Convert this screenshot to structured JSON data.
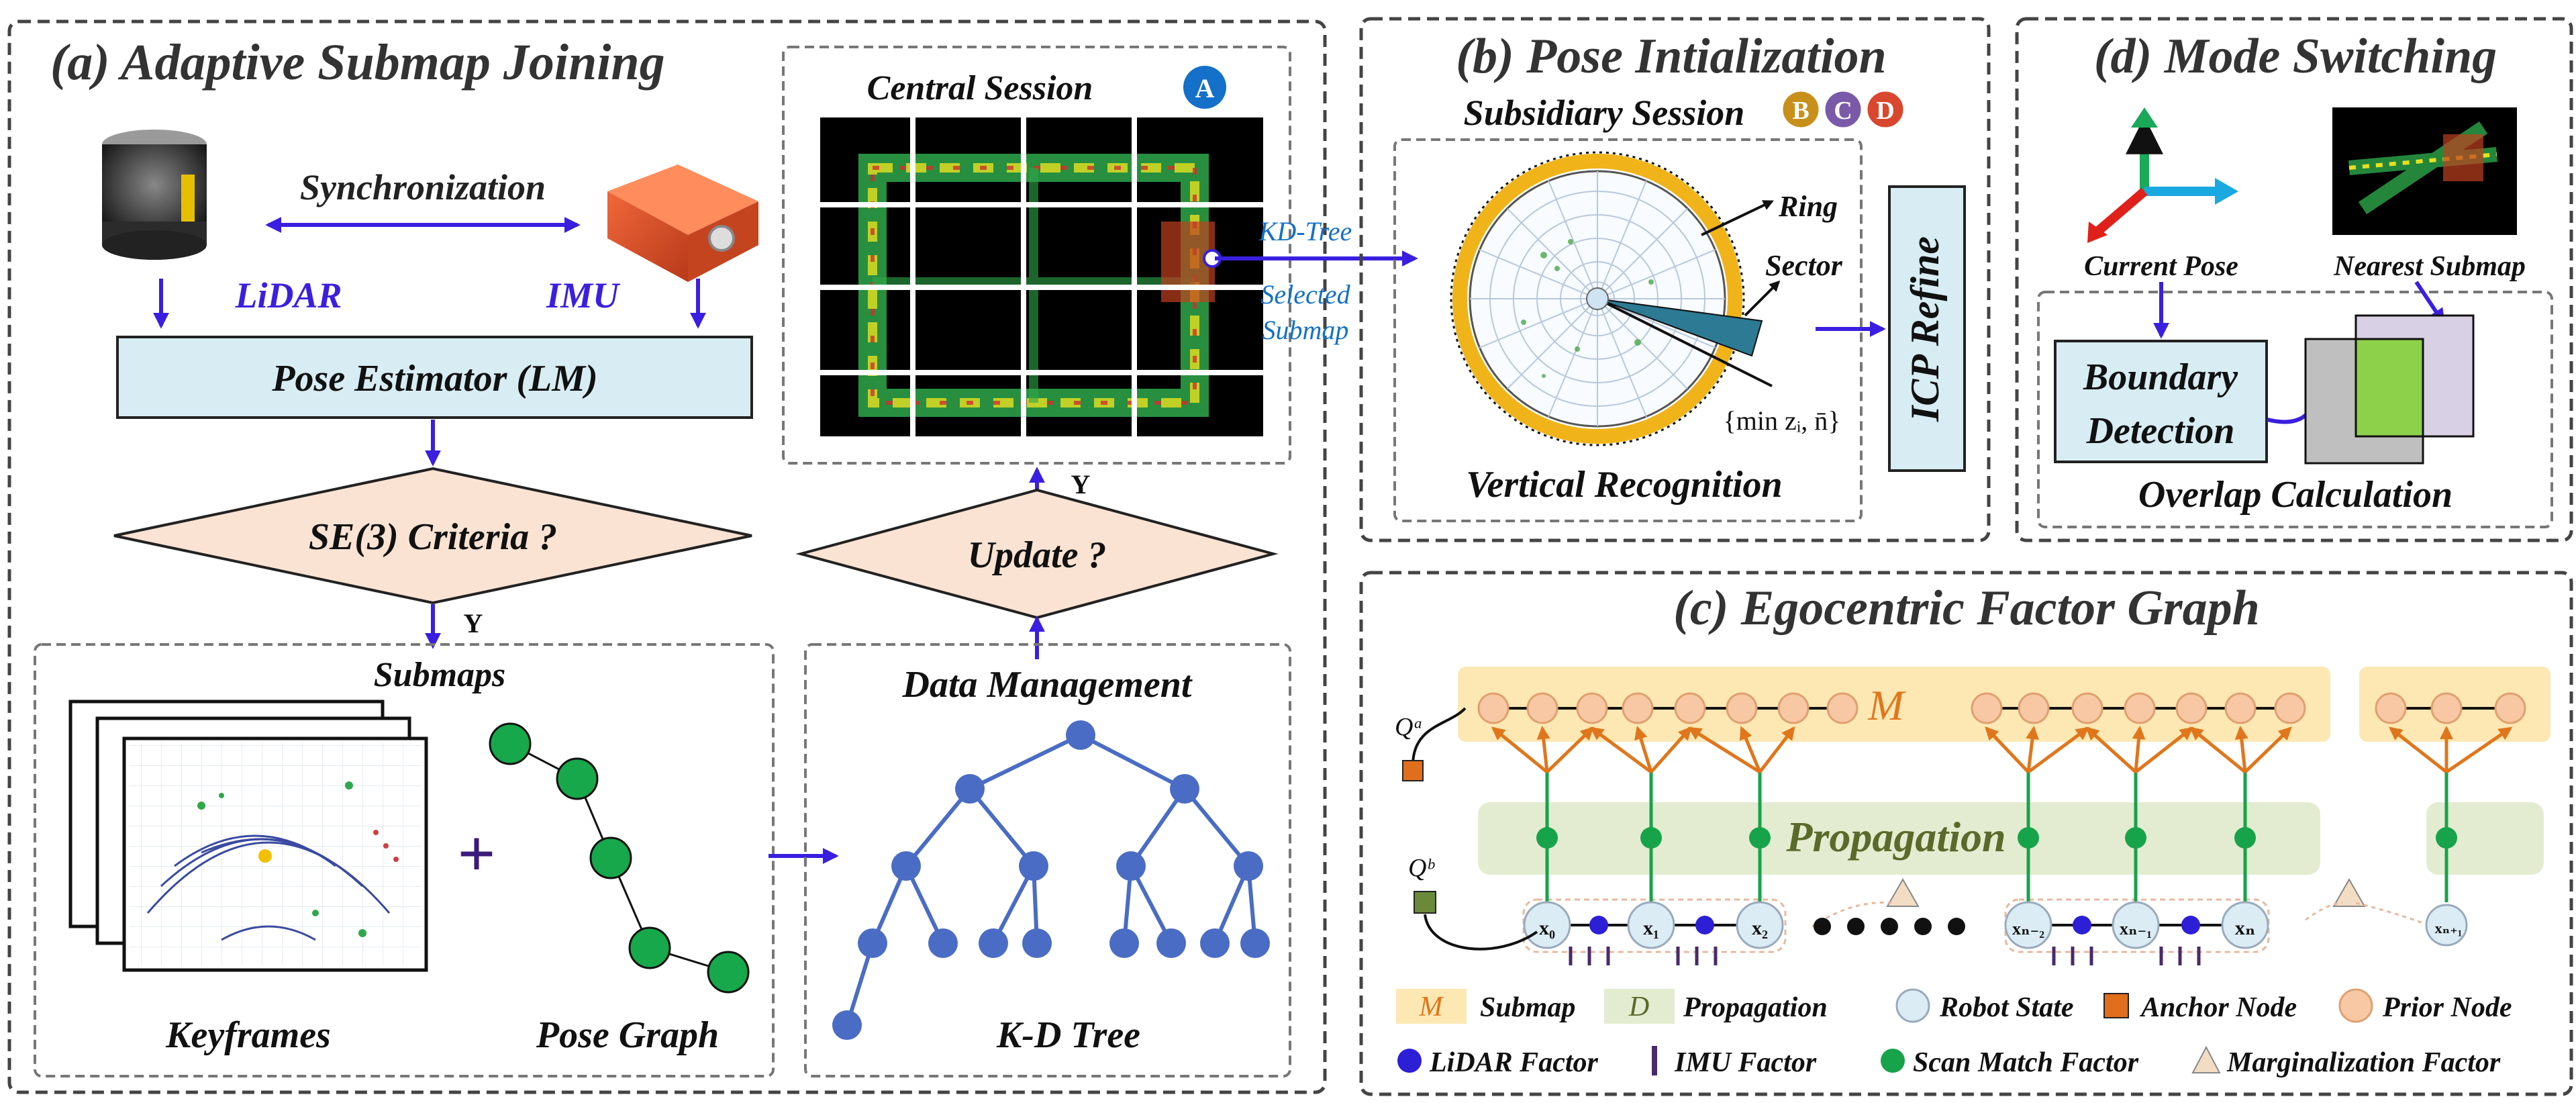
{
  "panel_a": {
    "title": "(a) Adaptive Submap Joining",
    "sync_label": "Synchronization",
    "lidar_label": "LiDAR",
    "imu_label": "IMU",
    "pose_estimator": "Pose Estimator (LM)",
    "se3_criteria": "SE(3) Criteria ?",
    "yes1": "Y",
    "submaps_title": "Submaps",
    "keyframes_label": "Keyframes",
    "plus": "+",
    "pose_graph_label": "Pose Graph",
    "central_session": "Central Session",
    "session_a": "A",
    "update": "Update ?",
    "yes2": "Y",
    "data_management": "Data Management",
    "kd_tree_label": "K-D Tree",
    "kd_tree_edge": "KD-Tree",
    "selected_submap_1": "Selected",
    "selected_submap_2": "Submap"
  },
  "panel_b": {
    "title": "(b) Pose Intialization",
    "subsidiary_session": "Subsidiary Session",
    "badges": [
      {
        "label": "B",
        "color": "#c8901a"
      },
      {
        "label": "C",
        "color": "#7a5aa8"
      },
      {
        "label": "D",
        "color": "#d9482e"
      }
    ],
    "ring": "Ring",
    "sector": "Sector",
    "min_formula": "{min zᵢ, n̄}",
    "vertical_recognition": "Vertical Recognition",
    "icp_refine": "ICP Refine"
  },
  "panel_d": {
    "title": "(d) Mode Switching",
    "current_pose": "Current Pose",
    "nearest_submap": "Nearest Submap",
    "boundary_1": "Boundary",
    "boundary_2": "Detection",
    "overlap": "Overlap Calculation"
  },
  "panel_c": {
    "title": "(c) Egocentric Factor Graph",
    "m_label": "M",
    "propagation": "Propagation",
    "qa": "Qᵃ",
    "qb": "Qᵇ",
    "x0": "x₀",
    "x1": "x₁",
    "x2": "x₂",
    "xn2": "xₙ₋₂",
    "xn1": "xₙ₋₁",
    "xn": "xₙ",
    "xn1p": "xₙ₊₁",
    "legend": {
      "m_box": "M",
      "submap": "Submap",
      "d_box": "D",
      "propagation": "Propagation",
      "robot_state": "Robot State",
      "anchor_node": "Anchor Node",
      "prior_node": "Prior Node",
      "lidar_factor": "LiDAR Factor",
      "imu_factor": "IMU Factor",
      "scan_match": "Scan Match Factor",
      "marginalization": "Marginalization Factor"
    }
  },
  "colors": {
    "arrow_blue": "#3a1fe0",
    "box_blue": "#d7ecf3",
    "diamond": "#fbe3d3",
    "prior": "#f8c8a4",
    "submap_band": "#fde8b4",
    "propagation_band": "#e3ecd0",
    "robot_state": "#dcecf5",
    "anchor": "#e06e1c",
    "tree": "#4a6cc4",
    "pose_graph": "#16a84a",
    "scan_match": "#17a34a",
    "lidar_factor": "#2c1fd6",
    "imu_factor": "#4a2a6a",
    "orange_edge": "#e0761c",
    "ring_yellow": "#f0b41a"
  }
}
